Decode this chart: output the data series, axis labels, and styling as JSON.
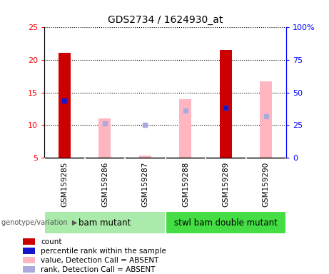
{
  "title": "GDS2734 / 1624930_at",
  "samples": [
    "GSM159285",
    "GSM159286",
    "GSM159287",
    "GSM159288",
    "GSM159289",
    "GSM159290"
  ],
  "red_bars": [
    21.1,
    0,
    0,
    0,
    21.5,
    0
  ],
  "pink_bars": [
    0,
    11.0,
    5.3,
    14.0,
    0,
    16.7
  ],
  "blue_dots_left": [
    13.8,
    null,
    null,
    null,
    12.7,
    null
  ],
  "lightblue_dots_left": [
    null,
    10.2,
    10.0,
    12.2,
    12.7,
    11.3
  ],
  "ylim_left": [
    5,
    25
  ],
  "ylim_right": [
    0,
    100
  ],
  "left_ticks": [
    5,
    10,
    15,
    20,
    25
  ],
  "right_ticks": [
    0,
    25,
    50,
    75,
    100
  ],
  "right_tick_labels": [
    "0",
    "25",
    "50",
    "75",
    "100%"
  ],
  "group1_label": "bam mutant",
  "group2_label": "stwl bam double mutant",
  "group_label": "genotype/variation",
  "green_light": "#90EE90",
  "green_dark": "#3CB371",
  "red_color": "#CC0000",
  "pink_color": "#FFB6C1",
  "blue_color": "#1515CC",
  "lightblue_color": "#AAAADD",
  "gray_bg": "#C8C8C8",
  "white": "#FFFFFF",
  "legend_items": [
    {
      "color": "#CC0000",
      "label": "count"
    },
    {
      "color": "#1515CC",
      "label": "percentile rank within the sample"
    },
    {
      "color": "#FFB6C1",
      "label": "value, Detection Call = ABSENT"
    },
    {
      "color": "#AAAADD",
      "label": "rank, Detection Call = ABSENT"
    }
  ],
  "bar_width": 0.3
}
